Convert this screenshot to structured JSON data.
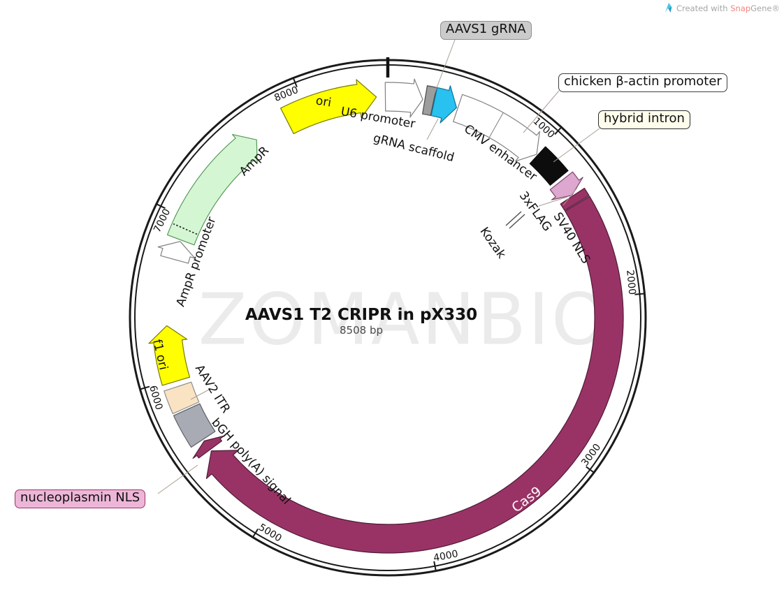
{
  "credit": {
    "prefix": "Created with ",
    "brand_a": "Snap",
    "brand_b": "Gene®"
  },
  "watermark": "ZOMANBIO",
  "title": "AAVS1 T2 CRIPR in pX330",
  "subtitle": "8508 bp",
  "callouts": [
    {
      "id": "aavs1",
      "text": "AAVS1 gRNA",
      "fill": "#cbcbcb",
      "border": "#8f8f8f"
    },
    {
      "id": "chicken",
      "text": "chicken β-actin promoter",
      "fill": "#ffffff",
      "border": "#3f3f3f"
    },
    {
      "id": "hybrid",
      "text": "hybrid intron",
      "fill": "#fffdec",
      "border": "#2b2b2b"
    },
    {
      "id": "nucleoplasmin",
      "text": "nucleoplasmin NLS",
      "fill": "#edb6d8",
      "border": "#993366"
    }
  ],
  "chart_data": {
    "type": "plasmid-map",
    "name": "AAVS1 T2 CRIPR in pX330",
    "length_bp": 8508,
    "tick_interval": 1000,
    "ticks": [
      1000,
      2000,
      3000,
      4000,
      5000,
      6000,
      7000,
      8000
    ],
    "features": [
      {
        "id": "u6-promoter",
        "label": "U6 promoter",
        "start": 8493,
        "end": 215,
        "head": 150,
        "shape": "arrow",
        "fill": "#ffffff",
        "outline": "#808080",
        "label_mode": "float"
      },
      {
        "id": "aavs1-grna",
        "label": "AAVS1 gRNA",
        "start": 228,
        "end": 282,
        "shape": "block",
        "fill": "#9d9d9d",
        "outline": "#4a4a4a",
        "label_mode": "callout"
      },
      {
        "id": "grna-scaffold",
        "label": "gRNA scaffold",
        "start": 286,
        "end": 428,
        "head": 356,
        "shape": "arrow",
        "fill": "#29c1ef",
        "outline": "#0e7396",
        "label_mode": "float"
      },
      {
        "id": "cba-unit",
        "label": "",
        "start": 436,
        "end": 1000,
        "head": 926,
        "shape": "arrow",
        "fill": "#ffffff",
        "outline": "#808080",
        "divider": 694
      },
      {
        "id": "cmv-enhancer",
        "label": "CMV enhancer",
        "start": 436,
        "end": 694,
        "shape": "segment-label",
        "label_mode": "float"
      },
      {
        "id": "chicken-b-actin",
        "label": "chicken β-actin promoter",
        "start": 694,
        "end": 1000,
        "shape": "segment-label",
        "label_mode": "callout"
      },
      {
        "id": "hybrid-intron",
        "label": "hybrid intron",
        "start": 1008,
        "end": 1200,
        "shape": "block",
        "fill": "#0d0d0d",
        "outline": "#0d0d0d",
        "inset": 4,
        "label_mode": "callout"
      },
      {
        "id": "kozak",
        "label": "Kozak",
        "start": 1210,
        "end": 1218,
        "shape": "mark",
        "label_mode": "float"
      },
      {
        "id": "3xflag",
        "label": "3xFLAG",
        "start": 1222,
        "end": 1332,
        "head": 1282,
        "shape": "arrow",
        "fill": "#dda7cf",
        "outline": "#7c436a",
        "label_mode": "float"
      },
      {
        "id": "sv40-nls",
        "label": "SV40 NLS",
        "start": 1338,
        "end": 1388,
        "shape": "block",
        "fill": "#993366",
        "outline": "#4f1b36",
        "label_mode": "float"
      },
      {
        "id": "cas9",
        "label": "Cas9",
        "start": 1394,
        "end": 5505,
        "head": 5398,
        "shape": "arrow",
        "fill": "#993366",
        "outline": "#4f1b36",
        "flare": 10,
        "label_mode": "on-arc"
      },
      {
        "id": "nucleoplasmin-nls",
        "label": "nucleoplasmin NLS",
        "start": 5516,
        "end": 5580,
        "head": 5534,
        "shape": "arrow",
        "fill": "#993366",
        "outline": "#4f1b36",
        "label_mode": "callout"
      },
      {
        "id": "bgh-polya",
        "label": "bGH poly(A) signal",
        "start": 5592,
        "end": 5800,
        "shape": "block",
        "fill": "#a8abb3",
        "outline": "#5b5e66",
        "label_mode": "float"
      },
      {
        "id": "aav2-itr",
        "label": "AAV2 ITR",
        "start": 5812,
        "end": 5952,
        "shape": "block",
        "fill": "#fae3c3",
        "outline": "#8d8d8d",
        "label_mode": "float"
      },
      {
        "id": "f1-ori",
        "label": "f1 ori",
        "start": 5986,
        "end": 6332,
        "head": 6236,
        "shape": "arrow",
        "fill": "#ffff00",
        "outline": "#7a7a00",
        "label_mode": "inside"
      },
      {
        "id": "ampr-promoter",
        "label": "AmpR promoter",
        "start": 6742,
        "end": 6858,
        "head": 6786,
        "shape": "arrow",
        "fill": "#ffffff",
        "outline": "#808080",
        "label_mode": "float"
      },
      {
        "id": "ampr",
        "label": "AmpR",
        "start": 6868,
        "end": 7648,
        "head": 7556,
        "shape": "arrow",
        "fill": "#d5f6d3",
        "outline": "#56995a",
        "divider_dotted": 6940,
        "label_mode": "float"
      },
      {
        "id": "ori",
        "label": "ori",
        "start": 7868,
        "end": 8438,
        "head": 8330,
        "shape": "arrow",
        "fill": "#ffff00",
        "outline": "#7a7a00",
        "label_mode": "inside"
      }
    ]
  }
}
